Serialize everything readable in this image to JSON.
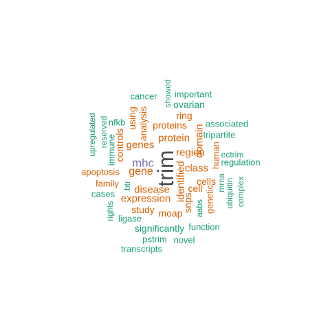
{
  "colors": {
    "dark": "#4d4d4d",
    "purple": "#7570b3",
    "orange": "#d95f02",
    "teal": "#1b9e77"
  },
  "words": [
    {
      "text": "trim",
      "color": "dark",
      "vertical": true
    },
    {
      "text": "mhc",
      "color": "purple",
      "vertical": false
    },
    {
      "text": "gene",
      "color": "orange",
      "vertical": false
    },
    {
      "text": "genes",
      "color": "orange",
      "vertical": false
    },
    {
      "text": "protein",
      "color": "orange",
      "vertical": false
    },
    {
      "text": "proteins",
      "color": "orange",
      "vertical": false
    },
    {
      "text": "expression",
      "color": "orange",
      "vertical": false
    },
    {
      "text": "disease",
      "color": "orange",
      "vertical": false
    },
    {
      "text": "class",
      "color": "orange",
      "vertical": false
    },
    {
      "text": "region",
      "color": "orange",
      "vertical": false
    },
    {
      "text": "ring",
      "color": "orange",
      "vertical": false
    },
    {
      "text": "apoptosis",
      "color": "orange",
      "vertical": false
    },
    {
      "text": "family",
      "color": "orange",
      "vertical": false
    },
    {
      "text": "study",
      "color": "orange",
      "vertical": false
    },
    {
      "text": "moap",
      "color": "orange",
      "vertical": false
    },
    {
      "text": "cells",
      "color": "orange",
      "vertical": false
    },
    {
      "text": "cell",
      "color": "orange",
      "vertical": false
    },
    {
      "text": "identified",
      "color": "orange",
      "vertical": true
    },
    {
      "text": "analysis",
      "color": "orange",
      "vertical": true
    },
    {
      "text": "using",
      "color": "orange",
      "vertical": true
    },
    {
      "text": "controls",
      "color": "orange",
      "vertical": true
    },
    {
      "text": "domain",
      "color": "orange",
      "vertical": true
    },
    {
      "text": "human",
      "color": "orange",
      "vertical": true
    },
    {
      "text": "snps",
      "color": "orange",
      "vertical": true
    },
    {
      "text": "genetic",
      "color": "orange",
      "vertical": true
    },
    {
      "text": "cancer",
      "color": "teal",
      "vertical": false
    },
    {
      "text": "important",
      "color": "teal",
      "vertical": false
    },
    {
      "text": "ovarian",
      "color": "teal",
      "vertical": false
    },
    {
      "text": "nfkb",
      "color": "teal",
      "vertical": false
    },
    {
      "text": "associated",
      "color": "teal",
      "vertical": false
    },
    {
      "text": "tripartite",
      "color": "teal",
      "vertical": false
    },
    {
      "text": "ectrim",
      "color": "teal",
      "vertical": false
    },
    {
      "text": "regulation",
      "color": "teal",
      "vertical": false
    },
    {
      "text": "cases",
      "color": "teal",
      "vertical": false
    },
    {
      "text": "ligase",
      "color": "teal",
      "vertical": false
    },
    {
      "text": "significantly",
      "color": "teal",
      "vertical": false
    },
    {
      "text": "function",
      "color": "teal",
      "vertical": false
    },
    {
      "text": "pstrim",
      "color": "teal",
      "vertical": false
    },
    {
      "text": "novel",
      "color": "teal",
      "vertical": false
    },
    {
      "text": "transcripts",
      "color": "teal",
      "vertical": false
    },
    {
      "text": "showed",
      "color": "teal",
      "vertical": true
    },
    {
      "text": "upregulated",
      "color": "teal",
      "vertical": true
    },
    {
      "text": "reserved",
      "color": "teal",
      "vertical": true
    },
    {
      "text": "immune",
      "color": "teal",
      "vertical": true
    },
    {
      "text": "btr",
      "color": "teal",
      "vertical": true
    },
    {
      "text": "rights",
      "color": "teal",
      "vertical": true
    },
    {
      "text": "aabs",
      "color": "teal",
      "vertical": true
    },
    {
      "text": "mrna",
      "color": "teal",
      "vertical": true
    },
    {
      "text": "ubiquitin",
      "color": "teal",
      "vertical": true
    },
    {
      "text": "complex",
      "color": "teal",
      "vertical": true
    }
  ]
}
